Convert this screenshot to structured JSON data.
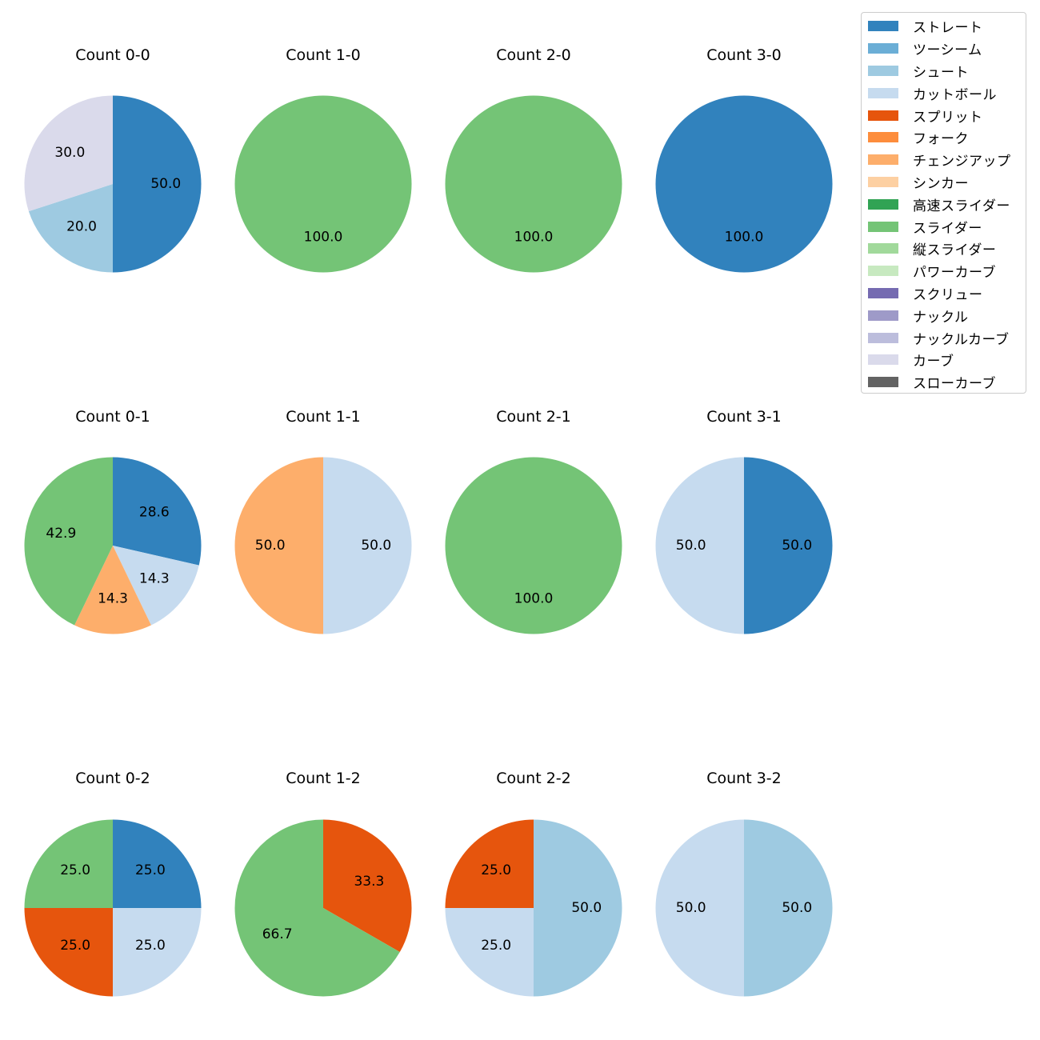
{
  "legend": [
    {
      "label": "ストレート",
      "color": "#3182bd"
    },
    {
      "label": "ツーシーム",
      "color": "#6baed6"
    },
    {
      "label": "シュート",
      "color": "#9ecae1"
    },
    {
      "label": "カットボール",
      "color": "#c6dbef"
    },
    {
      "label": "スプリット",
      "color": "#e6550d"
    },
    {
      "label": "フォーク",
      "color": "#fd8d3c"
    },
    {
      "label": "チェンジアップ",
      "color": "#fdae6b"
    },
    {
      "label": "シンカー",
      "color": "#fdd0a2"
    },
    {
      "label": "高速スライダー",
      "color": "#31a354"
    },
    {
      "label": "スライダー",
      "color": "#74c476"
    },
    {
      "label": "縦スライダー",
      "color": "#a1d99b"
    },
    {
      "label": "パワーカーブ",
      "color": "#c7e9c0"
    },
    {
      "label": "スクリュー",
      "color": "#756bb1"
    },
    {
      "label": "ナックル",
      "color": "#9e9ac8"
    },
    {
      "label": "ナックルカーブ",
      "color": "#bcbddc"
    },
    {
      "label": "カーブ",
      "color": "#dadaeb"
    },
    {
      "label": "スローカーブ",
      "color": "#636363"
    }
  ],
  "chart_data": [
    {
      "type": "pie",
      "title": "Count 0-0",
      "slices": [
        {
          "pitch": "ストレート",
          "value": 50.0,
          "label": "50.0"
        },
        {
          "pitch": "シュート",
          "value": 20.0,
          "label": "20.0"
        },
        {
          "pitch": "カーブ",
          "value": 30.0,
          "label": "30.0"
        }
      ]
    },
    {
      "type": "pie",
      "title": "Count 1-0",
      "slices": [
        {
          "pitch": "スライダー",
          "value": 100.0,
          "label": "100.0"
        }
      ]
    },
    {
      "type": "pie",
      "title": "Count 2-0",
      "slices": [
        {
          "pitch": "スライダー",
          "value": 100.0,
          "label": "100.0"
        }
      ]
    },
    {
      "type": "pie",
      "title": "Count 3-0",
      "slices": [
        {
          "pitch": "ストレート",
          "value": 100.0,
          "label": "100.0"
        }
      ]
    },
    {
      "type": "pie",
      "title": "Count 0-1",
      "slices": [
        {
          "pitch": "ストレート",
          "value": 28.6,
          "label": "28.6"
        },
        {
          "pitch": "カットボール",
          "value": 14.3,
          "label": "14.3"
        },
        {
          "pitch": "チェンジアップ",
          "value": 14.3,
          "label": "14.3"
        },
        {
          "pitch": "スライダー",
          "value": 42.9,
          "label": "42.9"
        }
      ]
    },
    {
      "type": "pie",
      "title": "Count 1-1",
      "slices": [
        {
          "pitch": "カットボール",
          "value": 50.0,
          "label": "50.0"
        },
        {
          "pitch": "チェンジアップ",
          "value": 50.0,
          "label": "50.0"
        }
      ]
    },
    {
      "type": "pie",
      "title": "Count 2-1",
      "slices": [
        {
          "pitch": "スライダー",
          "value": 100.0,
          "label": "100.0"
        }
      ]
    },
    {
      "type": "pie",
      "title": "Count 3-1",
      "slices": [
        {
          "pitch": "ストレート",
          "value": 50.0,
          "label": "50.0"
        },
        {
          "pitch": "カットボール",
          "value": 50.0,
          "label": "50.0"
        }
      ]
    },
    {
      "type": "pie",
      "title": "Count 0-2",
      "slices": [
        {
          "pitch": "ストレート",
          "value": 25.0,
          "label": "25.0"
        },
        {
          "pitch": "カットボール",
          "value": 25.0,
          "label": "25.0"
        },
        {
          "pitch": "スプリット",
          "value": 25.0,
          "label": "25.0"
        },
        {
          "pitch": "スライダー",
          "value": 25.0,
          "label": "25.0"
        }
      ]
    },
    {
      "type": "pie",
      "title": "Count 1-2",
      "slices": [
        {
          "pitch": "スプリット",
          "value": 33.3,
          "label": "33.3"
        },
        {
          "pitch": "スライダー",
          "value": 66.7,
          "label": "66.7"
        }
      ]
    },
    {
      "type": "pie",
      "title": "Count 2-2",
      "slices": [
        {
          "pitch": "シュート",
          "value": 50.0,
          "label": "50.0"
        },
        {
          "pitch": "カットボール",
          "value": 25.0,
          "label": "25.0"
        },
        {
          "pitch": "スプリット",
          "value": 25.0,
          "label": "25.0"
        }
      ]
    },
    {
      "type": "pie",
      "title": "Count 3-2",
      "slices": [
        {
          "pitch": "シュート",
          "value": 50.0,
          "label": "50.0"
        },
        {
          "pitch": "カットボール",
          "value": 50.0,
          "label": "50.0"
        }
      ]
    }
  ]
}
